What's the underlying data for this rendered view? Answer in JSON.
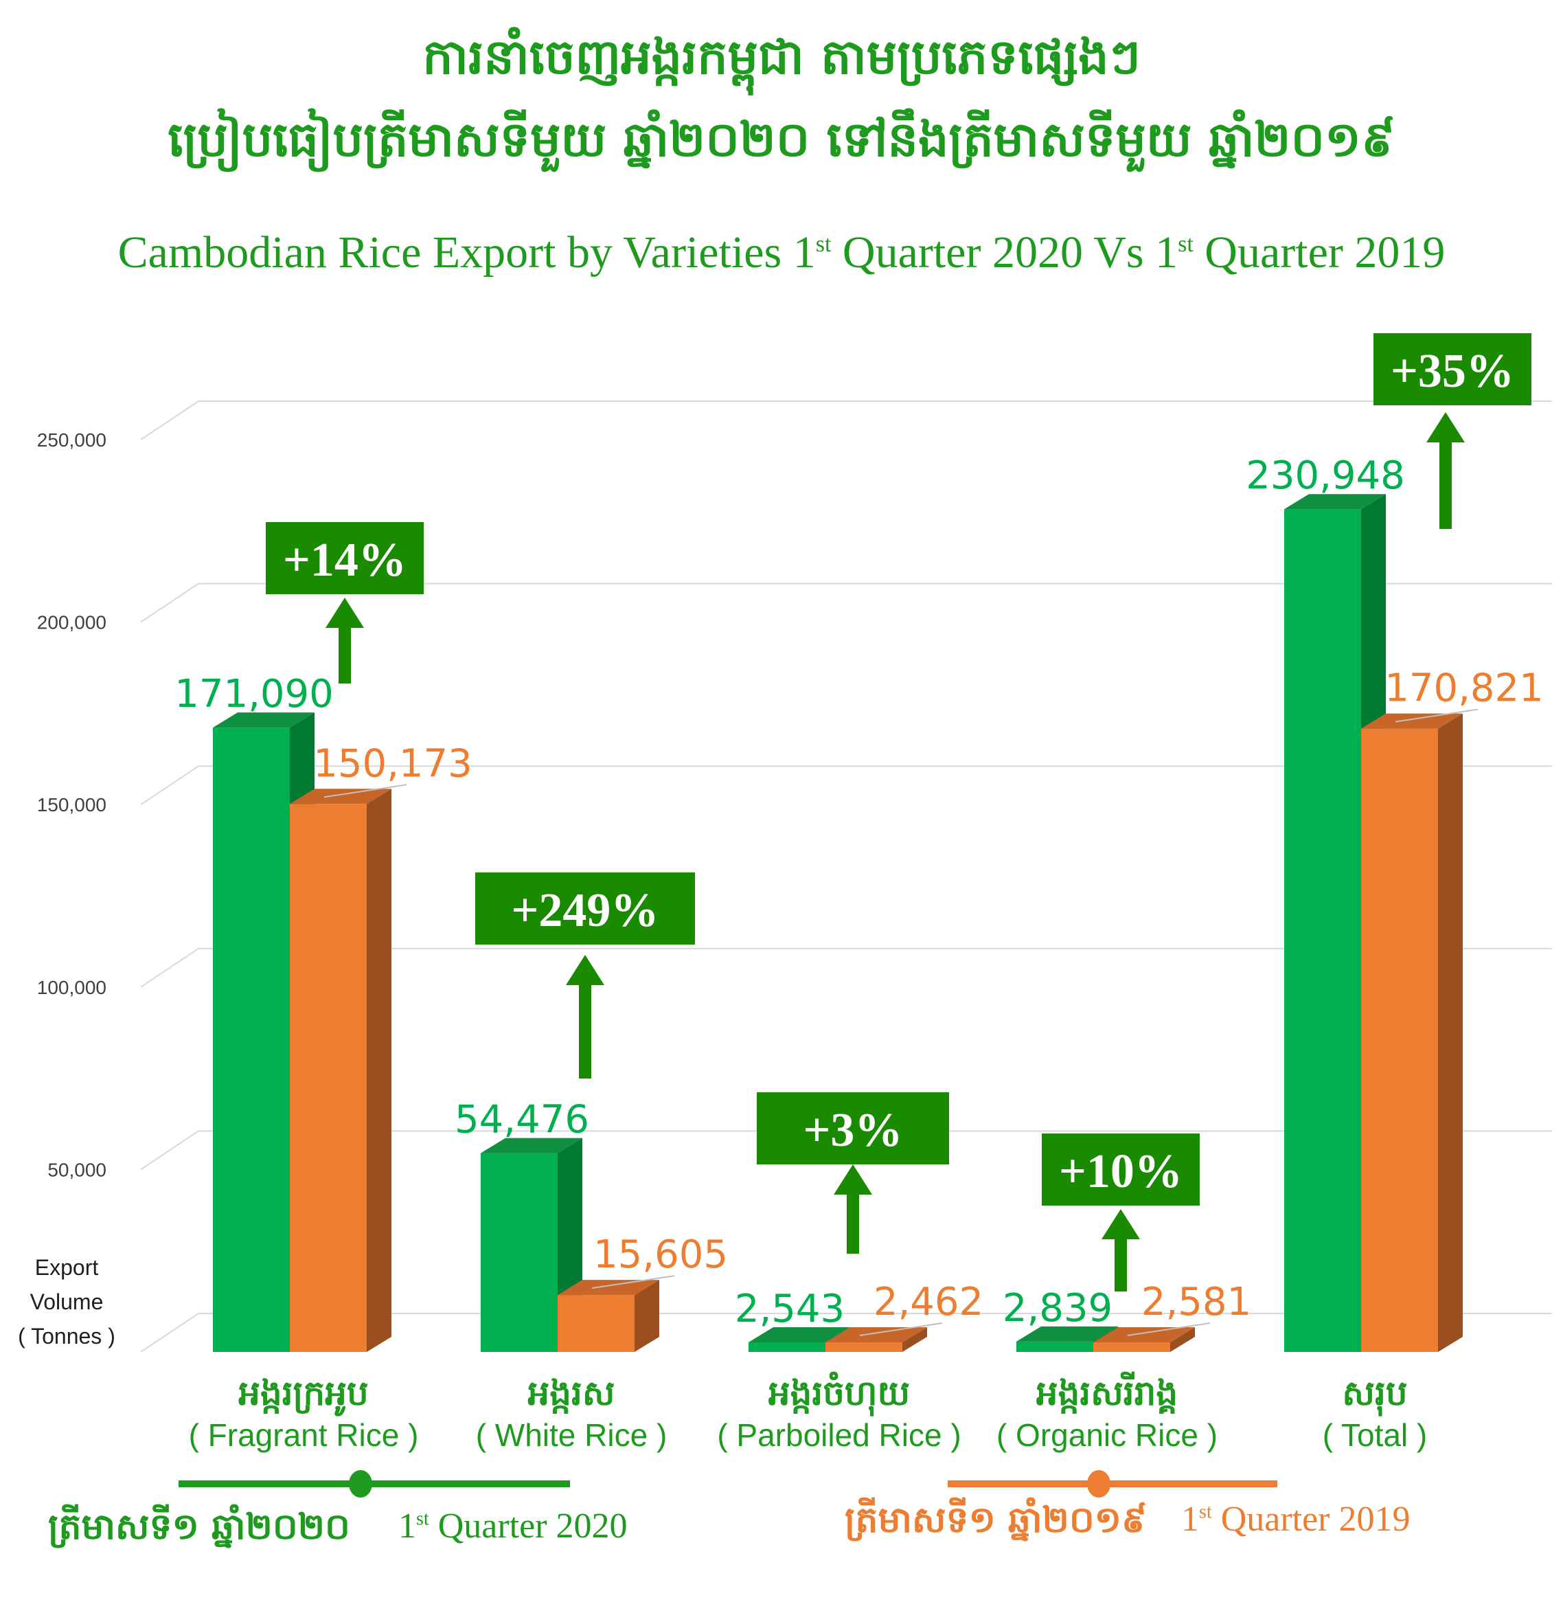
{
  "title_km_line1": "ការនាំចេញអង្ករកម្ពុជា តាមប្រភេទផ្សេងៗ",
  "title_km_line2": "ប្រៀបធៀបត្រីមាសទីមួយ ឆ្នាំ២០២០ ទៅនឹងត្រីមាសទីមួយ ឆ្នាំ២០១៩",
  "title_en_prefix": "Cambodian Rice Export by Varieties 1",
  "title_en_sup1": "st",
  "title_en_middle": " Quarter 2020 Vs 1",
  "title_en_sup2": "st",
  "title_en_suffix": " Quarter 2019",
  "colors": {
    "green": "#00b050",
    "green_dark": "#007a33",
    "orange": "#ed7d31",
    "orange_dark": "#9b4f1f",
    "badge_green": "#1a8a00",
    "text_green": "#1e9a1e",
    "text_orange": "#ed7d31"
  },
  "chart_data": {
    "type": "bar",
    "ylabel": "Export Volume ( Tonnes )",
    "ylim": [
      0,
      250000
    ],
    "ytick_labels": [
      "50,000",
      "100,000",
      "150,000",
      "200,000",
      "250,000"
    ],
    "yticks": [
      50000,
      100000,
      150000,
      200000,
      250000
    ],
    "grid": true,
    "categories": [
      {
        "km": "អង្ករក្រអូប",
        "en": "( Fragrant Rice )"
      },
      {
        "km": "អង្ករស",
        "en": "( White Rice )"
      },
      {
        "km": "អង្ករចំហុយ",
        "en": "( Parboiled Rice )"
      },
      {
        "km": "អង្ករសរីរាង្គ",
        "en": "( Organic Rice )"
      },
      {
        "km": "សរុប",
        "en": "( Total )"
      }
    ],
    "series": [
      {
        "name": "1st Quarter 2020",
        "values": [
          171090,
          54476,
          2543,
          2839,
          230948
        ],
        "labels": [
          "171,090",
          "54,476",
          "2,543",
          "2,839",
          "230,948"
        ]
      },
      {
        "name": "1st Quarter 2019",
        "values": [
          150173,
          15605,
          2462,
          2581,
          170821
        ],
        "labels": [
          "150,173",
          "15,605",
          "2,462",
          "2,581",
          "170,821"
        ]
      }
    ],
    "changes": [
      "+14%",
      "+249%",
      "+3%",
      "+10%",
      "+35%"
    ]
  },
  "legend": {
    "q2020_km": "ត្រីមាសទី១ ឆ្នាំ២០២០",
    "q2020_en_prefix": "1",
    "q2020_en_sup": "st",
    "q2020_en_suffix": " Quarter 2020",
    "q2019_km": "ត្រីមាសទី១ ឆ្នាំ២០១៩",
    "q2019_en_prefix": "1",
    "q2019_en_sup": "st",
    "q2019_en_suffix": " Quarter 2019"
  }
}
